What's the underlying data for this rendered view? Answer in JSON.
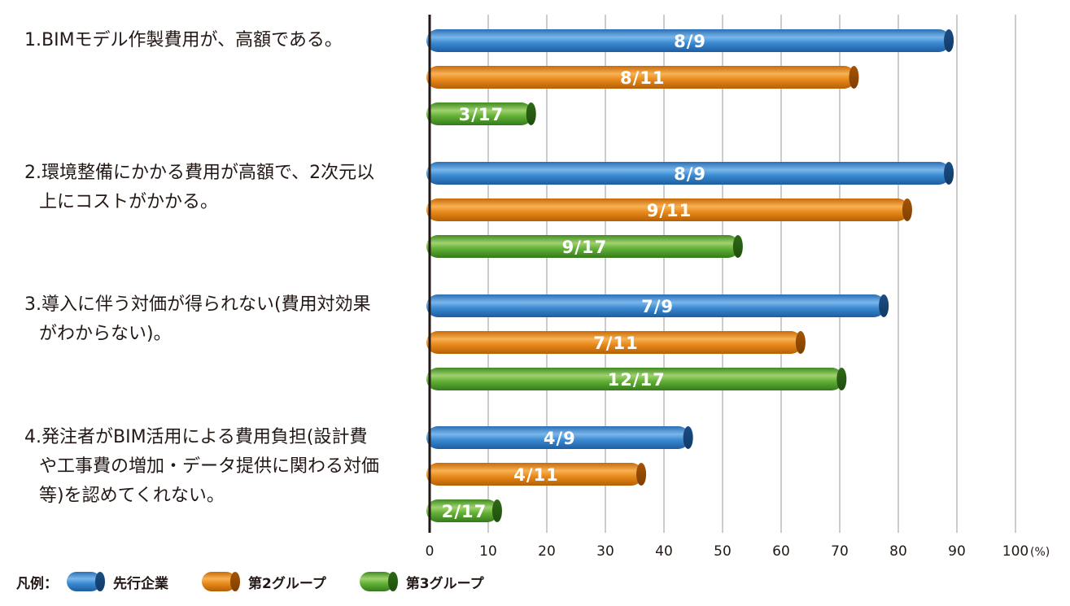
{
  "chart_data": {
    "type": "bar",
    "orientation": "horizontal",
    "categories": [
      [
        "1.BIMモデル作製費用が、高額である。"
      ],
      [
        "2.環境整備にかかる費用が高額で、2次元以",
        "上にコストがかかる。"
      ],
      [
        "3.導入に伴う対価が得られない(費用対効果",
        "がわからない)。"
      ],
      [
        "4.発注者がBIM活用による費用負担(設計費",
        "や工事費の増加・データ提供に関わる対価",
        "等)を認めてくれない。"
      ]
    ],
    "series": [
      {
        "name": "先行企業",
        "color": "#2f7fc6",
        "values": [
          88.9,
          88.9,
          77.8,
          44.4
        ],
        "labels": [
          "8/9",
          "8/9",
          "7/9",
          "4/9"
        ]
      },
      {
        "name": "第2グループ",
        "color": "#e07b0c",
        "values": [
          72.7,
          81.8,
          63.6,
          36.4
        ],
        "labels": [
          "8/11",
          "9/11",
          "7/11",
          "4/11"
        ]
      },
      {
        "name": "第3グループ",
        "color": "#5aa52f",
        "values": [
          17.6,
          52.9,
          70.6,
          11.8
        ],
        "labels": [
          "3/17",
          "9/17",
          "12/17",
          "2/17"
        ]
      }
    ],
    "xlim": [
      0,
      100
    ],
    "xticks": [
      0,
      10,
      20,
      30,
      40,
      50,
      60,
      70,
      80,
      90,
      100
    ],
    "xunit": "(%)",
    "grid": true,
    "legend": {
      "title": "凡例：",
      "placement": "bottom-left"
    }
  }
}
